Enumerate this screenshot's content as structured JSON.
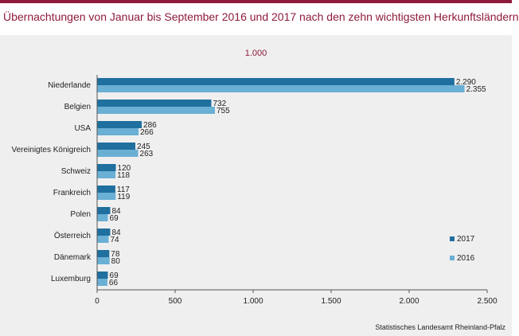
{
  "header": {
    "title": "Übernachtungen von Januar bis September 2016 und 2017 nach den zehn wichtigsten Herkunftsländern"
  },
  "footer": {
    "source": "Statistisches Landesamt Rheinland-Pfalz"
  },
  "chart_data": {
    "type": "bar",
    "orientation": "horizontal",
    "unit_label": "1.000",
    "categories": [
      "Niederlande",
      "Belgien",
      "USA",
      "Vereinigtes Königreich",
      "Schweiz",
      "Frankreich",
      "Polen",
      "Österreich",
      "Dänemark",
      "Luxemburg"
    ],
    "series": [
      {
        "name": "2017",
        "color": "#1f6f9f",
        "values": [
          2290,
          732,
          286,
          245,
          120,
          117,
          84,
          84,
          78,
          69
        ],
        "labels": [
          "2.290",
          "732",
          "286",
          "245",
          "120",
          "117",
          "84",
          "84",
          "78",
          "69"
        ]
      },
      {
        "name": "2016",
        "color": "#6aafd4",
        "values": [
          2355,
          755,
          266,
          263,
          118,
          119,
          69,
          74,
          80,
          66
        ],
        "labels": [
          "2.355",
          "755",
          "266",
          "263",
          "118",
          "119",
          "69",
          "74",
          "80",
          "66"
        ]
      }
    ],
    "xlim": [
      0,
      2500
    ],
    "x_ticks": [
      0,
      500,
      1000,
      1500,
      2000,
      2500
    ],
    "x_tick_labels": [
      "0",
      "500",
      "1.000",
      "1.500",
      "2.000",
      "2.500"
    ],
    "grid": false,
    "legend_position": "right"
  }
}
